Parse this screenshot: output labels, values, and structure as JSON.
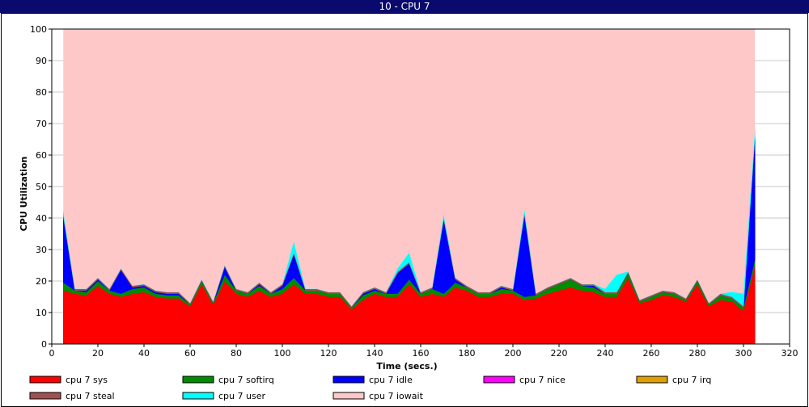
{
  "window": {
    "title": "10 - CPU 7"
  },
  "chart_data": {
    "type": "area",
    "stacked": true,
    "xlabel": "Time (secs.)",
    "ylabel": "CPU Utilization",
    "xlim": [
      0,
      320
    ],
    "ylim": [
      0,
      100
    ],
    "xticks": [
      0,
      20,
      40,
      60,
      80,
      100,
      120,
      140,
      160,
      180,
      200,
      220,
      240,
      260,
      280,
      300,
      320
    ],
    "yticks": [
      0,
      10,
      20,
      30,
      40,
      50,
      60,
      70,
      80,
      90,
      100
    ],
    "grid": "horizontal",
    "legend_position": "bottom",
    "x": [
      5,
      10,
      15,
      20,
      25,
      30,
      35,
      40,
      45,
      50,
      55,
      60,
      65,
      70,
      75,
      80,
      85,
      90,
      95,
      100,
      105,
      110,
      115,
      120,
      125,
      130,
      135,
      140,
      145,
      150,
      155,
      160,
      165,
      170,
      175,
      180,
      185,
      190,
      195,
      200,
      205,
      210,
      215,
      220,
      225,
      230,
      235,
      240,
      245,
      250,
      255,
      260,
      265,
      270,
      275,
      280,
      285,
      290,
      295,
      300,
      305
    ],
    "series": [
      {
        "name": "cpu 7 sys",
        "color": "#ff0000",
        "values": [
          17,
          16,
          15.5,
          18.5,
          16,
          15,
          16,
          16.5,
          15,
          14.5,
          14.5,
          12,
          19,
          12.5,
          20,
          16,
          15,
          17,
          15,
          16,
          19,
          16,
          16,
          15,
          15,
          11,
          14,
          16,
          15,
          15,
          19,
          15,
          16,
          15,
          18,
          17,
          15,
          15,
          16,
          16,
          14,
          14.5,
          16,
          17,
          18,
          17,
          16.5,
          15,
          15,
          21,
          13,
          14,
          15.5,
          15,
          13.5,
          19,
          12,
          14,
          13.5,
          10.5,
          25
        ]
      },
      {
        "name": "cpu 7 softirq",
        "color": "#008c00",
        "values": [
          2.5,
          1,
          1,
          1.5,
          1,
          1,
          1.5,
          1.5,
          1,
          1,
          1,
          0.5,
          1,
          0.5,
          2,
          1,
          1,
          1.5,
          1,
          1.5,
          2,
          1,
          1,
          1,
          1,
          0.5,
          1.5,
          1,
          1,
          1,
          1.5,
          1,
          1.5,
          1,
          1.5,
          1,
          1,
          1,
          1.5,
          1,
          1,
          1,
          1.5,
          2,
          2.5,
          1.5,
          1.5,
          1,
          1,
          1.5,
          0.5,
          1,
          1,
          1,
          0.5,
          1,
          0.5,
          1.5,
          1,
          1,
          2
        ]
      },
      {
        "name": "cpu 7 idle",
        "color": "#0000ff",
        "values": [
          21,
          0,
          0.5,
          0.5,
          0,
          7.5,
          0.5,
          0.5,
          0.5,
          0.5,
          0.5,
          0,
          0,
          0,
          2.5,
          0,
          0,
          0.5,
          0,
          1,
          7.5,
          0,
          0,
          0,
          0,
          0,
          0.5,
          0.5,
          0,
          6.5,
          5,
          0,
          0,
          23.5,
          1,
          0,
          0,
          0,
          0.5,
          0,
          26,
          0,
          0,
          0,
          0,
          0,
          0.5,
          0,
          0,
          0,
          0,
          0,
          0,
          0,
          0,
          0,
          0,
          0,
          0,
          0,
          39
        ]
      },
      {
        "name": "cpu 7 nice",
        "color": "#ff00ff",
        "values": [
          0,
          0,
          0,
          0,
          0,
          0,
          0,
          0,
          0,
          0,
          0,
          0,
          0,
          0,
          0,
          0,
          0,
          0,
          0,
          0,
          0,
          0,
          0,
          0,
          0,
          0,
          0,
          0,
          0,
          0,
          0,
          0,
          0,
          0,
          0,
          0,
          0,
          0,
          0,
          0,
          0,
          0,
          0,
          0,
          0,
          0,
          0,
          0,
          0,
          0,
          0,
          0,
          0,
          0,
          0,
          0,
          0,
          0,
          0,
          0,
          0
        ]
      },
      {
        "name": "cpu 7 irq",
        "color": "#e0a000",
        "values": [
          0,
          0,
          0,
          0,
          0,
          0,
          0,
          0,
          0,
          0,
          0,
          0,
          0,
          0,
          0,
          0,
          0,
          0,
          0,
          0,
          0,
          0,
          0,
          0,
          0,
          0,
          0,
          0,
          0,
          0,
          0,
          0,
          0,
          0,
          0,
          0,
          0,
          0,
          0,
          0,
          0,
          0,
          0,
          0,
          0,
          0,
          0,
          0,
          0,
          0,
          0,
          0,
          0,
          0,
          0,
          0,
          0,
          0,
          0,
          0,
          0
        ]
      },
      {
        "name": "cpu 7 steal",
        "color": "#a05050",
        "values": [
          0.5,
          0.5,
          0.5,
          0.5,
          0.5,
          0.5,
          0.5,
          0.5,
          0.5,
          0.5,
          0.5,
          0.5,
          0.5,
          0.5,
          0.5,
          0.5,
          0.5,
          0.5,
          0.5,
          0.5,
          0.5,
          0.5,
          0.5,
          0.5,
          0.5,
          0.5,
          0.5,
          0.5,
          0.5,
          0.5,
          0.5,
          0.5,
          0.5,
          0.5,
          0.5,
          0.5,
          0.5,
          0.5,
          0.5,
          0.5,
          0.5,
          0.5,
          0.5,
          0.5,
          0.5,
          0.5,
          0.5,
          0.5,
          0.5,
          0.5,
          0.5,
          0.5,
          0.5,
          0.5,
          0.5,
          0.5,
          0.5,
          0.5,
          0.5,
          0.5,
          0.5
        ]
      },
      {
        "name": "cpu 7 user",
        "color": "#00ffff",
        "values": [
          1,
          0,
          0,
          0,
          0,
          0,
          0,
          0,
          0,
          0,
          0,
          0,
          0,
          0,
          0,
          0,
          0,
          0,
          0,
          0,
          3.5,
          0,
          0,
          0,
          0,
          0,
          0,
          0,
          0,
          1,
          3,
          0,
          0,
          1,
          0,
          0,
          0,
          0,
          0,
          0,
          1,
          0,
          0,
          0,
          0,
          0,
          0,
          1,
          5.5,
          0,
          0,
          0,
          0,
          0,
          0,
          0,
          0,
          0,
          1.5,
          4,
          1.5
        ]
      },
      {
        "name": "cpu 7 iowait",
        "color": "#ffc8c8",
        "fill_to_top": true,
        "values": [
          58,
          82.5,
          82.5,
          79,
          82.5,
          76,
          81.5,
          81,
          83,
          83.5,
          83.5,
          87,
          79.5,
          86.5,
          75,
          82.5,
          83.5,
          80.5,
          83.5,
          81,
          67.5,
          82.5,
          82.5,
          83.5,
          83.5,
          88,
          83.5,
          82,
          83.5,
          76,
          71,
          83.5,
          82,
          59,
          79,
          81.5,
          83.5,
          83.5,
          81.5,
          82.5,
          57.5,
          84,
          82,
          80.5,
          79,
          81,
          81,
          82.5,
          78,
          77,
          86,
          84.5,
          83,
          83.5,
          85.5,
          79.5,
          87,
          84,
          83.5,
          84,
          32
        ]
      }
    ]
  }
}
